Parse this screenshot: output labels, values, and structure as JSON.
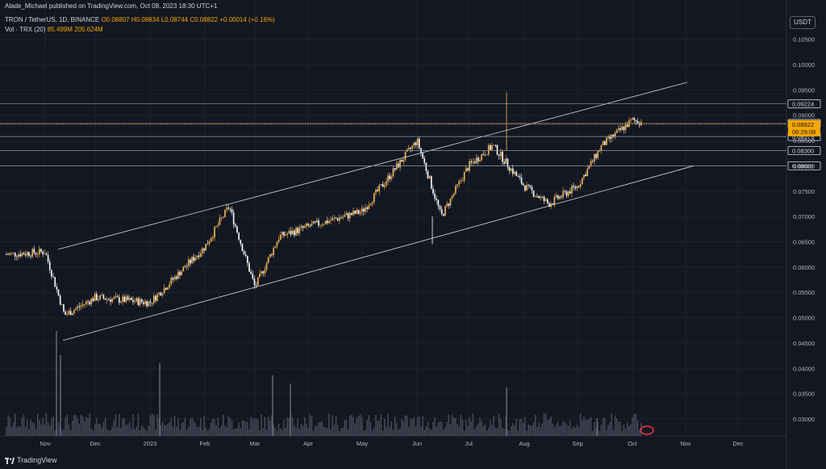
{
  "header": {
    "published": "Alade_Michael published on TradingView.com, Oct 08, 2023 18:30 UTC+1",
    "symbol": "TRON / TetherUS, 1D, BINANCE",
    "ohlc": "O0.08807 H0.08834 L0.08744 C0.08822 +0.00014 (+0.16%)",
    "volume_label": "Vol · TRX (20)",
    "volume_values": "85.499M 205.624M"
  },
  "currency_button": "USDT",
  "footer_brand": "TradingView",
  "colors": {
    "background": "#131722",
    "candle_up": "#f7b955",
    "candle_down": "#ffffff",
    "last_price": "#f7a600",
    "grid": "#1e222d"
  },
  "chart_data": {
    "type": "candlestick",
    "price_scale": {
      "ticks": [
        0.03,
        0.035,
        0.04,
        0.045,
        0.05,
        0.055,
        0.06,
        0.065,
        0.07,
        0.075,
        0.08,
        0.085,
        0.09,
        0.095,
        0.1,
        0.105
      ],
      "tick_labels": [
        "0.03000",
        "0.03500",
        "0.04000",
        "0.04500",
        "0.05000",
        "0.05500",
        "0.06000",
        "0.06500",
        "0.07000",
        "0.07500",
        "0.08000",
        "0.08500",
        "0.09000",
        "0.09500",
        "0.10000",
        "0.10500"
      ]
    },
    "time_axis": [
      "Nov",
      "Dec",
      "2023",
      "Feb",
      "Mar",
      "Apr",
      "May",
      "Jun",
      "Jul",
      "Aug",
      "Sep",
      "Oct",
      "Nov",
      "Dec"
    ],
    "horizontal_levels": [
      {
        "value": 0.09224,
        "label": "0.09224"
      },
      {
        "value": 0.08837,
        "label": "0.08837"
      },
      {
        "value": 0.08579,
        "label": "0.08579"
      },
      {
        "value": 0.083,
        "label": "0.08300"
      },
      {
        "value": 0.08001,
        "label": "0.08001"
      }
    ],
    "last_price": {
      "value": 0.08822,
      "label": "0.08822",
      "countdown": "06:29:08"
    },
    "channel": {
      "upper": {
        "from": [
          "Nov 2022",
          0.0635
        ],
        "to": [
          "Oct 2023",
          0.0965
        ]
      },
      "lower": {
        "from": [
          "Nov 2022",
          0.0455
        ],
        "to": [
          "Oct 2023",
          0.08
        ]
      }
    },
    "price_path_approx": [
      {
        "date": "Oct 2022",
        "close": 0.0625
      },
      {
        "date": "Nov 2022",
        "close": 0.063
      },
      {
        "date": "Nov 2022",
        "close": 0.0505
      },
      {
        "date": "Dec 2022",
        "close": 0.054
      },
      {
        "date": "Jan 2023",
        "close": 0.053
      },
      {
        "date": "Feb 2023",
        "close": 0.064
      },
      {
        "date": "Feb 2023",
        "close": 0.072
      },
      {
        "date": "Mar 2023",
        "close": 0.056
      },
      {
        "date": "Mar 2023",
        "close": 0.066
      },
      {
        "date": "Apr 2023",
        "close": 0.068
      },
      {
        "date": "May 2023",
        "close": 0.071
      },
      {
        "date": "Jun 2023",
        "close": 0.085
      },
      {
        "date": "Jun 2023",
        "close": 0.07
      },
      {
        "date": "Jul 2023",
        "close": 0.08
      },
      {
        "date": "Jul 2023",
        "close": 0.084
      },
      {
        "date": "Aug 2023",
        "close": 0.076
      },
      {
        "date": "Aug 2023",
        "close": 0.0725
      },
      {
        "date": "Sep 2023",
        "close": 0.076
      },
      {
        "date": "Sep 2023",
        "close": 0.084
      },
      {
        "date": "Oct 2023",
        "close": 0.089
      },
      {
        "date": "Oct 2023",
        "close": 0.0882
      }
    ]
  }
}
